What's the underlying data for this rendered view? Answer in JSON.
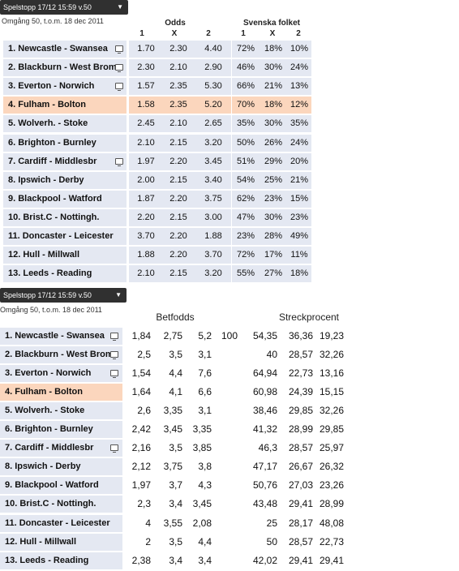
{
  "top": {
    "dropdown_label": "Spelstopp 17/12 15:59 v.50",
    "round_info": "Omgång 50, t.o.m. 18 dec 2011",
    "odds_header": "Odds",
    "svenska_header": "Svenska folket",
    "col_labels": [
      "1",
      "X",
      "2"
    ],
    "rows": [
      {
        "match": "1.  Newcastle - Swansea",
        "tv": true,
        "odds": [
          "1.70",
          "2.30",
          "4.40"
        ],
        "sv": [
          "72%",
          "18%",
          "10%"
        ]
      },
      {
        "match": "2.  Blackburn - West Brom",
        "tv": true,
        "odds": [
          "2.30",
          "2.10",
          "2.90"
        ],
        "sv": [
          "46%",
          "30%",
          "24%"
        ]
      },
      {
        "match": "3.  Everton - Norwich",
        "tv": true,
        "odds": [
          "1.57",
          "2.35",
          "5.30"
        ],
        "sv": [
          "66%",
          "21%",
          "13%"
        ]
      },
      {
        "match": "4.  Fulham - Bolton",
        "tv": false,
        "hl": true,
        "odds": [
          "1.58",
          "2.35",
          "5.20"
        ],
        "sv": [
          "70%",
          "18%",
          "12%"
        ]
      },
      {
        "match": "5.  Wolverh. - Stoke",
        "tv": false,
        "odds": [
          "2.45",
          "2.10",
          "2.65"
        ],
        "sv": [
          "35%",
          "30%",
          "35%"
        ]
      },
      {
        "match": "6.  Brighton - Burnley",
        "tv": false,
        "odds": [
          "2.10",
          "2.15",
          "3.20"
        ],
        "sv": [
          "50%",
          "26%",
          "24%"
        ]
      },
      {
        "match": "7.  Cardiff - Middlesbr",
        "tv": true,
        "odds": [
          "1.97",
          "2.20",
          "3.45"
        ],
        "sv": [
          "51%",
          "29%",
          "20%"
        ]
      },
      {
        "match": "8.  Ipswich - Derby",
        "tv": false,
        "odds": [
          "2.00",
          "2.15",
          "3.40"
        ],
        "sv": [
          "54%",
          "25%",
          "21%"
        ]
      },
      {
        "match": "9.  Blackpool - Watford",
        "tv": false,
        "odds": [
          "1.87",
          "2.20",
          "3.75"
        ],
        "sv": [
          "62%",
          "23%",
          "15%"
        ]
      },
      {
        "match": "10. Brist.C - Nottingh.",
        "tv": false,
        "odds": [
          "2.20",
          "2.15",
          "3.00"
        ],
        "sv": [
          "47%",
          "30%",
          "23%"
        ]
      },
      {
        "match": "11. Doncaster - Leicester",
        "tv": false,
        "odds": [
          "3.70",
          "2.20",
          "1.88"
        ],
        "sv": [
          "23%",
          "28%",
          "49%"
        ]
      },
      {
        "match": "12. Hull - Millwall",
        "tv": false,
        "odds": [
          "1.88",
          "2.20",
          "3.70"
        ],
        "sv": [
          "72%",
          "17%",
          "11%"
        ]
      },
      {
        "match": "13. Leeds - Reading",
        "tv": false,
        "odds": [
          "2.10",
          "2.15",
          "3.20"
        ],
        "sv": [
          "55%",
          "27%",
          "18%"
        ]
      }
    ]
  },
  "bottom": {
    "dropdown_label": "Spelstopp 17/12 15:59 v.50",
    "round_info": "Omgång 50, t.o.m. 18 dec 2011",
    "betfodds_header": "Betfodds",
    "streck_header": "Streckprocent",
    "rows": [
      {
        "match": "1.  Newcastle - Swansea",
        "tv": true,
        "odds": [
          "1,84",
          "2,75",
          "5,2"
        ],
        "total": "100",
        "pct": [
          "54,35",
          "36,36",
          "19,23"
        ]
      },
      {
        "match": "2.  Blackburn - West Brom",
        "tv": true,
        "odds": [
          "2,5",
          "3,5",
          "3,1"
        ],
        "total": "",
        "pct": [
          "40",
          "28,57",
          "32,26"
        ]
      },
      {
        "match": "3.  Everton - Norwich",
        "tv": true,
        "odds": [
          "1,54",
          "4,4",
          "7,6"
        ],
        "total": "",
        "pct": [
          "64,94",
          "22,73",
          "13,16"
        ]
      },
      {
        "match": "4.  Fulham - Bolton",
        "tv": false,
        "hl": true,
        "odds": [
          "1,64",
          "4,1",
          "6,6"
        ],
        "total": "",
        "pct": [
          "60,98",
          "24,39",
          "15,15"
        ]
      },
      {
        "match": "5.  Wolverh. - Stoke",
        "tv": false,
        "odds": [
          "2,6",
          "3,35",
          "3,1"
        ],
        "total": "",
        "pct": [
          "38,46",
          "29,85",
          "32,26"
        ]
      },
      {
        "match": "6.  Brighton - Burnley",
        "tv": false,
        "odds": [
          "2,42",
          "3,45",
          "3,35"
        ],
        "total": "",
        "pct": [
          "41,32",
          "28,99",
          "29,85"
        ]
      },
      {
        "match": "7.  Cardiff - Middlesbr",
        "tv": true,
        "odds": [
          "2,16",
          "3,5",
          "3,85"
        ],
        "total": "",
        "pct": [
          "46,3",
          "28,57",
          "25,97"
        ]
      },
      {
        "match": "8.  Ipswich - Derby",
        "tv": false,
        "odds": [
          "2,12",
          "3,75",
          "3,8"
        ],
        "total": "",
        "pct": [
          "47,17",
          "26,67",
          "26,32"
        ]
      },
      {
        "match": "9.  Blackpool - Watford",
        "tv": false,
        "odds": [
          "1,97",
          "3,7",
          "4,3"
        ],
        "total": "",
        "pct": [
          "50,76",
          "27,03",
          "23,26"
        ]
      },
      {
        "match": "10. Brist.C - Nottingh.",
        "tv": false,
        "odds": [
          "2,3",
          "3,4",
          "3,45"
        ],
        "total": "",
        "pct": [
          "43,48",
          "29,41",
          "28,99"
        ]
      },
      {
        "match": "11. Doncaster - Leicester",
        "tv": false,
        "odds": [
          "4",
          "3,55",
          "2,08"
        ],
        "total": "",
        "pct": [
          "25",
          "28,17",
          "48,08"
        ]
      },
      {
        "match": "12. Hull - Millwall",
        "tv": false,
        "odds": [
          "2",
          "3,5",
          "4,4"
        ],
        "total": "",
        "pct": [
          "50",
          "28,57",
          "22,73"
        ]
      },
      {
        "match": "13. Leeds - Reading",
        "tv": false,
        "odds": [
          "2,38",
          "3,4",
          "3,4"
        ],
        "total": "",
        "pct": [
          "42,02",
          "29,41",
          "29,41"
        ]
      }
    ]
  },
  "colors": {
    "row_bg": "#e4e8f2",
    "highlight_bg": "#fbd6bd",
    "dropdown_bg": "#303030"
  },
  "icons": {
    "tv": "tv-monitor-icon",
    "chevron": "chevron-down-icon"
  }
}
